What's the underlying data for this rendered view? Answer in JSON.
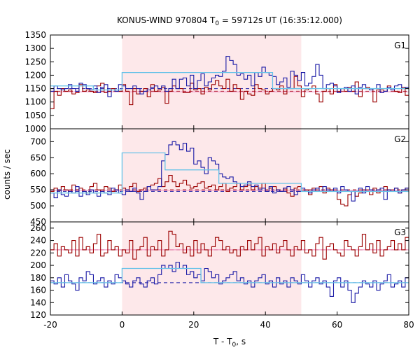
{
  "chart_data": {
    "type": "line",
    "title": "KONUS-WIND 970804 T",
    "title_sub": "0",
    "title_rest": " = 59712s UT (16:35:12.000)",
    "xlabel": "T - T",
    "xlabel_sub": "0",
    "xlabel_rest": ", s",
    "ylabel": "counts / sec",
    "xlim": [
      -20,
      80
    ],
    "xticks": [
      -20,
      0,
      20,
      40,
      60,
      80
    ],
    "highlight": {
      "from": 0,
      "to": 50,
      "color": "#fde8ea"
    },
    "colors": {
      "red": "#9b0000",
      "blue": "#1a1aa6",
      "cyan": "#66c2e8",
      "pink": "#f08cc0"
    },
    "panels": [
      {
        "name": "G1",
        "ylim": [
          1000,
          1350
        ],
        "yticks": [
          1000,
          1050,
          1100,
          1150,
          1200,
          1250,
          1300,
          1350
        ],
        "bin": 1.0,
        "red": {
          "start": -20,
          "values": [
            1075,
            1140,
            1125,
            1150,
            1140,
            1145,
            1130,
            1135,
            1165,
            1140,
            1145,
            1140,
            1135,
            1160,
            1170,
            1135,
            1140,
            1150,
            1145,
            1140,
            1165,
            1140,
            1090,
            1150,
            1130,
            1140,
            1150,
            1120,
            1165,
            1140,
            1145,
            1155,
            1095,
            1140,
            1160,
            1150,
            1150,
            1135,
            1135,
            1170,
            1145,
            1150,
            1130,
            1155,
            1145,
            1165,
            1180,
            1160,
            1150,
            1185,
            1140,
            1165,
            1150,
            1110,
            1140,
            1130,
            1125,
            1165,
            1150,
            1145,
            1130,
            1140,
            1150,
            1145,
            1160,
            1130,
            1150,
            1150,
            1195,
            1160,
            1120,
            1145,
            1150,
            1160,
            1130,
            1100,
            1140,
            1150,
            1130,
            1165,
            1140,
            1150,
            1140,
            1155,
            1140,
            1175,
            1120,
            1150,
            1155,
            1150,
            1100,
            1145,
            1145,
            1140,
            1160,
            1145,
            1140,
            1135,
            1155,
            1125
          ]
        },
        "blue": {
          "start": -20,
          "values": [
            1140,
            1160,
            1150,
            1145,
            1150,
            1165,
            1150,
            1140,
            1170,
            1165,
            1150,
            1145,
            1160,
            1135,
            1155,
            1165,
            1120,
            1145,
            1140,
            1165,
            1160,
            1150,
            1150,
            1160,
            1150,
            1130,
            1140,
            1145,
            1155,
            1160,
            1150,
            1160,
            1140,
            1150,
            1185,
            1150,
            1185,
            1190,
            1160,
            1200,
            1150,
            1180,
            1205,
            1160,
            1175,
            1190,
            1200,
            1195,
            1215,
            1270,
            1255,
            1240,
            1200,
            1205,
            1185,
            1200,
            1160,
            1210,
            1195,
            1230,
            1210,
            1200,
            1195,
            1165,
            1175,
            1190,
            1155,
            1215,
            1200,
            1180,
            1210,
            1160,
            1170,
            1195,
            1240,
            1200,
            1150,
            1165,
            1170,
            1160,
            1135,
            1150,
            1155,
            1140,
            1160,
            1130,
            1155,
            1165,
            1150,
            1145,
            1150,
            1165,
            1135,
            1140,
            1155,
            1145,
            1160,
            1165,
            1150,
            1155
          ]
        },
        "red_bg": 1140,
        "blue_bg": 1150,
        "cyan": [
          {
            "from": -20,
            "to": -8,
            "y": 1160
          },
          {
            "from": -8,
            "to": 0,
            "y": 1145
          },
          {
            "from": 0,
            "to": 42,
            "y": 1210
          },
          {
            "from": 42,
            "to": 80,
            "y": 1150
          }
        ],
        "pink": [
          {
            "from": -20,
            "to": 80,
            "y": 1138
          }
        ]
      },
      {
        "name": "G2",
        "ylim": [
          450,
          740
        ],
        "yticks": [
          450,
          500,
          550,
          600,
          650,
          700
        ],
        "bin": 1.0,
        "red": {
          "start": -20,
          "values": [
            545,
            555,
            548,
            560,
            550,
            545,
            565,
            550,
            555,
            545,
            540,
            560,
            570,
            550,
            545,
            560,
            555,
            545,
            550,
            565,
            555,
            550,
            560,
            570,
            545,
            550,
            555,
            560,
            565,
            570,
            585,
            560,
            575,
            595,
            575,
            560,
            570,
            580,
            565,
            555,
            560,
            570,
            575,
            555,
            560,
            565,
            550,
            560,
            570,
            545,
            555,
            560,
            570,
            550,
            560,
            565,
            550,
            560,
            555,
            570,
            545,
            555,
            560,
            550,
            545,
            555,
            540,
            530,
            555,
            560,
            545,
            550,
            535,
            555,
            545,
            560,
            540,
            555,
            550,
            545,
            520,
            505,
            500,
            535,
            545,
            530,
            540,
            550,
            545,
            535,
            555,
            540,
            545,
            560,
            550,
            545,
            555,
            540,
            550,
            555
          ]
        },
        "blue": {
          "start": -20,
          "values": [
            540,
            525,
            550,
            535,
            530,
            545,
            540,
            560,
            530,
            545,
            535,
            550,
            540,
            530,
            545,
            540,
            535,
            555,
            550,
            540,
            535,
            550,
            545,
            555,
            540,
            520,
            545,
            560,
            550,
            550,
            560,
            640,
            660,
            690,
            700,
            690,
            675,
            695,
            670,
            680,
            630,
            640,
            620,
            600,
            650,
            640,
            630,
            600,
            590,
            585,
            590,
            575,
            570,
            560,
            565,
            575,
            560,
            565,
            550,
            555,
            545,
            560,
            540,
            550,
            545,
            555,
            560,
            550,
            535,
            545,
            555,
            545,
            540,
            550,
            555,
            545,
            560,
            550,
            545,
            555,
            540,
            560,
            550,
            545,
            515,
            545,
            555,
            540,
            560,
            550,
            545,
            550,
            555,
            520,
            550,
            545,
            555,
            540,
            550,
            555
          ]
        },
        "red_bg": 550,
        "blue_bg": 545,
        "cyan": [
          {
            "from": -20,
            "to": 0,
            "y": 540
          },
          {
            "from": 0,
            "to": 12,
            "y": 665
          },
          {
            "from": 12,
            "to": 27,
            "y": 612
          },
          {
            "from": 27,
            "to": 50,
            "y": 570
          },
          {
            "from": 50,
            "to": 80,
            "y": 545
          }
        ],
        "pink": [
          {
            "from": -20,
            "to": 80,
            "y": 548
          }
        ]
      },
      {
        "name": "G3",
        "ylim": [
          120,
          270
        ],
        "yticks": [
          120,
          140,
          160,
          180,
          200,
          220,
          240,
          260
        ],
        "bin": 1.0,
        "red": {
          "start": -20,
          "values": [
            225,
            235,
            215,
            230,
            225,
            220,
            240,
            215,
            245,
            225,
            230,
            220,
            235,
            250,
            215,
            220,
            240,
            225,
            230,
            215,
            225,
            220,
            240,
            210,
            225,
            230,
            245,
            215,
            230,
            225,
            240,
            215,
            225,
            255,
            250,
            230,
            235,
            220,
            230,
            215,
            240,
            220,
            235,
            225,
            215,
            230,
            245,
            240,
            225,
            230,
            220,
            225,
            215,
            230,
            225,
            240,
            225,
            235,
            245,
            215,
            230,
            225,
            235,
            220,
            230,
            240,
            225,
            215,
            230,
            225,
            240,
            220,
            225,
            215,
            235,
            245,
            210,
            230,
            235,
            225,
            220,
            215,
            240,
            230,
            225,
            215,
            230,
            250,
            225,
            235,
            220,
            240,
            215,
            225,
            230,
            240,
            225,
            235,
            225,
            245
          ]
        },
        "blue": {
          "start": -20,
          "values": [
            175,
            170,
            180,
            165,
            185,
            175,
            170,
            160,
            180,
            175,
            190,
            185,
            170,
            175,
            180,
            165,
            175,
            170,
            185,
            180,
            175,
            170,
            165,
            175,
            180,
            170,
            165,
            175,
            180,
            170,
            185,
            200,
            195,
            200,
            190,
            205,
            195,
            200,
            185,
            190,
            180,
            185,
            175,
            195,
            190,
            180,
            185,
            170,
            175,
            180,
            185,
            190,
            175,
            180,
            170,
            175,
            165,
            175,
            180,
            185,
            170,
            175,
            165,
            180,
            170,
            175,
            165,
            180,
            175,
            170,
            185,
            175,
            165,
            175,
            180,
            170,
            175,
            165,
            150,
            175,
            180,
            165,
            175,
            160,
            140,
            155,
            165,
            175,
            170,
            165,
            175,
            160,
            170,
            175,
            185,
            165,
            170,
            175,
            165,
            180
          ]
        },
        "red_bg": 225,
        "blue_bg": 172,
        "cyan": [
          {
            "from": -20,
            "to": 0,
            "y": 172
          },
          {
            "from": 0,
            "to": 22,
            "y": 195
          },
          {
            "from": 22,
            "to": 80,
            "y": 172
          }
        ],
        "pink": [
          {
            "from": -20,
            "to": 80,
            "y": 225
          }
        ]
      }
    ]
  }
}
